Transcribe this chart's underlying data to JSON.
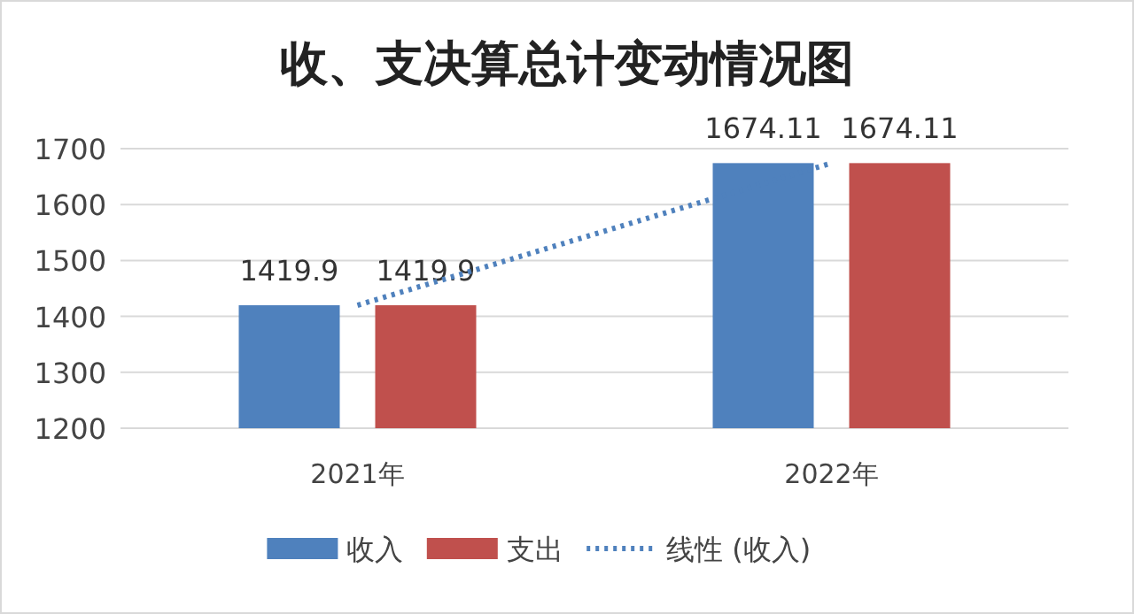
{
  "chart_data": {
    "type": "bar",
    "title": "收、支决算总计变动情况图",
    "categories": [
      "2021年",
      "2022年"
    ],
    "series": [
      {
        "name": "收入",
        "color": "#4f81bd",
        "values": [
          1419.9,
          1674.11
        ],
        "value_labels": [
          "1419.9",
          "1674.11"
        ]
      },
      {
        "name": "支出",
        "color": "#c0504d",
        "values": [
          1419.9,
          1674.11
        ],
        "value_labels": [
          "1419.9",
          "1674.11"
        ]
      },
      {
        "name": "线性 (收入)",
        "type": "line",
        "color": "#4f81bd",
        "line_style": "dotted",
        "values": [
          1419.9,
          1674.11
        ]
      }
    ],
    "ylim": [
      1200,
      1700
    ],
    "yticks": [
      1200,
      1300,
      1400,
      1500,
      1600,
      1700
    ],
    "grid": "y",
    "legend": "bottom"
  }
}
